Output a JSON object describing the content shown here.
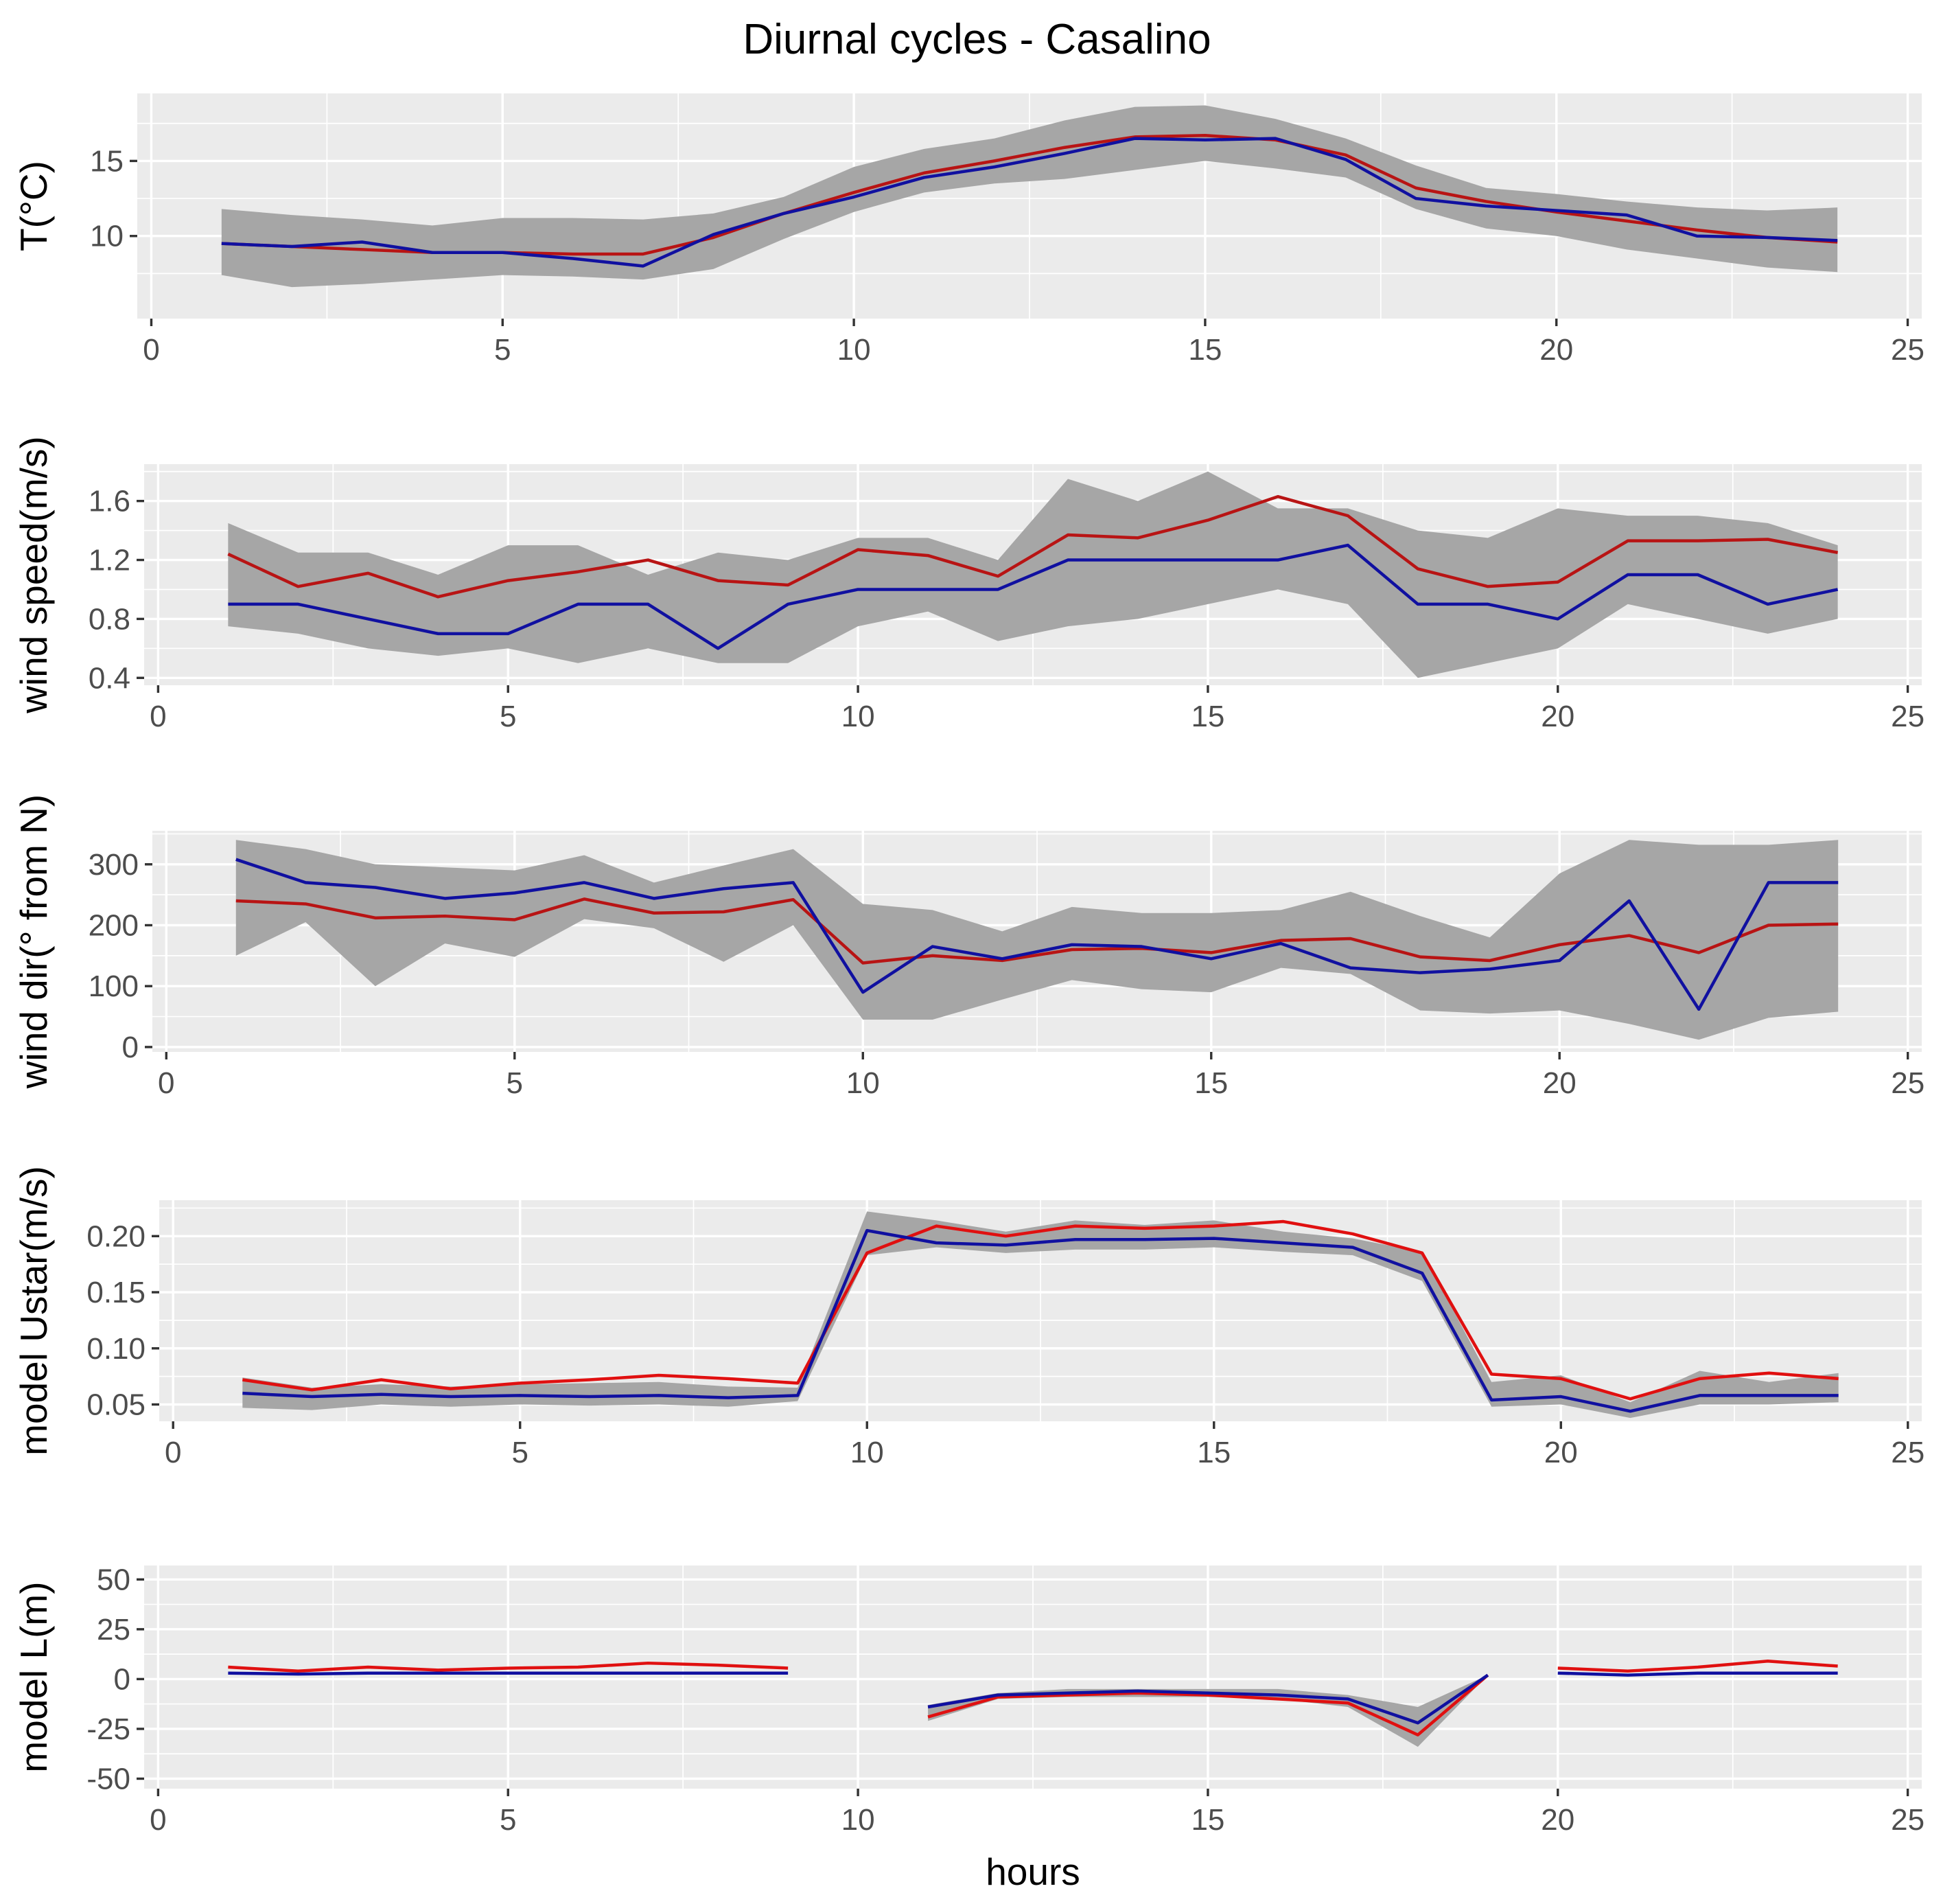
{
  "title": "Diurnal cycles - Casalino",
  "x_axis_label": "hours",
  "colors": {
    "panel_background": "#ebebeb",
    "ribbon": "#a6a6a6",
    "observed": "#1010a0",
    "model": "#e01010",
    "model_dark": "#b81414"
  },
  "chart_data": [
    {
      "type": "line",
      "title": "Diurnal cycles - Casalino",
      "ylabel": "T(°C)",
      "xlabel": "",
      "xlim": [
        -0.2,
        25.2
      ],
      "ylim": [
        4.5,
        19.5
      ],
      "xticks": [
        0,
        5,
        10,
        15,
        20,
        25
      ],
      "yticks": [
        10,
        15
      ],
      "x": [
        1,
        2,
        3,
        4,
        5,
        6,
        7,
        8,
        9,
        10,
        11,
        12,
        13,
        14,
        15,
        16,
        17,
        18,
        19,
        20,
        21,
        22,
        23,
        24
      ],
      "ribbon": {
        "upper": [
          11.8,
          11.4,
          11.1,
          10.7,
          11.2,
          11.2,
          11.1,
          11.5,
          12.6,
          14.6,
          15.8,
          16.5,
          17.7,
          18.6,
          18.7,
          17.8,
          16.5,
          14.7,
          13.2,
          12.8,
          12.3,
          11.9,
          11.7,
          11.9
        ],
        "lower": [
          7.4,
          6.6,
          6.8,
          7.1,
          7.4,
          7.3,
          7.1,
          7.8,
          9.8,
          11.6,
          12.9,
          13.5,
          13.8,
          14.4,
          15.0,
          14.5,
          13.9,
          11.8,
          10.5,
          10.0,
          9.1,
          8.5,
          7.9,
          7.6
        ]
      },
      "series": [
        {
          "name": "model",
          "color": "#b81414",
          "values": [
            9.5,
            9.3,
            9.1,
            8.9,
            8.9,
            8.8,
            8.8,
            9.9,
            11.5,
            12.9,
            14.2,
            15.0,
            15.9,
            16.6,
            16.7,
            16.4,
            15.4,
            13.2,
            12.3,
            11.6,
            11.0,
            10.4,
            9.9,
            9.6
          ]
        },
        {
          "name": "observed",
          "color": "#1010a0",
          "values": [
            9.5,
            9.3,
            9.6,
            8.9,
            8.9,
            8.5,
            8.0,
            10.1,
            11.5,
            12.6,
            13.9,
            14.6,
            15.5,
            16.5,
            16.4,
            16.5,
            15.1,
            12.5,
            12.0,
            11.7,
            11.4,
            10.0,
            9.9,
            9.7
          ]
        }
      ]
    },
    {
      "type": "line",
      "ylabel": "wind speed(m/s)",
      "xlabel": "",
      "xlim": [
        -0.2,
        25.2
      ],
      "ylim": [
        0.35,
        1.85
      ],
      "xticks": [
        0,
        5,
        10,
        15,
        20,
        25
      ],
      "yticks": [
        0.4,
        0.8,
        1.2,
        1.6
      ],
      "x": [
        1,
        2,
        3,
        4,
        5,
        6,
        7,
        8,
        9,
        10,
        11,
        12,
        13,
        14,
        15,
        16,
        17,
        18,
        19,
        20,
        21,
        22,
        23,
        24
      ],
      "ribbon": {
        "upper": [
          1.45,
          1.25,
          1.25,
          1.1,
          1.3,
          1.3,
          1.1,
          1.25,
          1.2,
          1.35,
          1.35,
          1.2,
          1.75,
          1.6,
          1.8,
          1.55,
          1.55,
          1.4,
          1.35,
          1.55,
          1.5,
          1.5,
          1.45,
          1.3
        ],
        "lower": [
          0.75,
          0.7,
          0.6,
          0.55,
          0.6,
          0.5,
          0.6,
          0.5,
          0.5,
          0.75,
          0.85,
          0.65,
          0.75,
          0.8,
          0.9,
          1.0,
          0.9,
          0.4,
          0.5,
          0.6,
          0.9,
          0.8,
          0.7,
          0.8
        ]
      },
      "series": [
        {
          "name": "model",
          "color": "#b81414",
          "values": [
            1.24,
            1.02,
            1.11,
            0.95,
            1.06,
            1.12,
            1.2,
            1.06,
            1.03,
            1.27,
            1.23,
            1.09,
            1.37,
            1.35,
            1.47,
            1.63,
            1.5,
            1.14,
            1.02,
            1.05,
            1.33,
            1.33,
            1.34,
            1.25
          ]
        },
        {
          "name": "observed",
          "color": "#1010a0",
          "values": [
            0.9,
            0.9,
            0.8,
            0.7,
            0.7,
            0.9,
            0.9,
            0.6,
            0.9,
            1.0,
            1.0,
            1.0,
            1.2,
            1.2,
            1.2,
            1.2,
            1.3,
            0.9,
            0.9,
            0.8,
            1.1,
            1.1,
            0.9,
            1.0
          ]
        }
      ]
    },
    {
      "type": "line",
      "ylabel": "wind dir(° from N)",
      "xlabel": "",
      "xlim": [
        -0.2,
        25.2
      ],
      "ylim": [
        -8,
        355
      ],
      "xticks": [
        0,
        5,
        10,
        15,
        20,
        25
      ],
      "yticks": [
        0,
        100,
        200,
        300
      ],
      "x": [
        1,
        2,
        3,
        4,
        5,
        6,
        7,
        8,
        9,
        10,
        11,
        12,
        13,
        14,
        15,
        16,
        17,
        18,
        19,
        20,
        21,
        22,
        23,
        24
      ],
      "ribbon": {
        "upper": [
          340,
          325,
          300,
          295,
          290,
          315,
          270,
          298,
          325,
          235,
          225,
          190,
          230,
          220,
          220,
          225,
          255,
          215,
          180,
          285,
          340,
          332,
          332,
          340
        ],
        "lower": [
          150,
          205,
          100,
          170,
          148,
          210,
          195,
          140,
          200,
          45,
          45,
          78,
          110,
          95,
          90,
          130,
          120,
          60,
          55,
          60,
          38,
          12,
          48,
          58
        ]
      },
      "series": [
        {
          "name": "model",
          "color": "#b81414",
          "values": [
            240,
            235,
            212,
            215,
            209,
            243,
            220,
            222,
            242,
            138,
            150,
            142,
            160,
            162,
            155,
            175,
            178,
            148,
            142,
            168,
            183,
            155,
            200,
            202
          ]
        },
        {
          "name": "observed",
          "color": "#1010a0",
          "values": [
            308,
            270,
            262,
            244,
            253,
            270,
            244,
            260,
            270,
            90,
            165,
            145,
            168,
            165,
            145,
            170,
            130,
            122,
            128,
            142,
            240,
            62,
            270,
            270
          ]
        }
      ]
    },
    {
      "type": "line",
      "ylabel": "model Ustar(m/s)",
      "xlabel": "",
      "xlim": [
        -0.2,
        25.2
      ],
      "ylim": [
        0.035,
        0.232
      ],
      "xticks": [
        0,
        5,
        10,
        15,
        20,
        25
      ],
      "yticks": [
        0.05,
        0.1,
        0.15,
        0.2
      ],
      "x": [
        1,
        2,
        3,
        4,
        5,
        6,
        7,
        8,
        9,
        10,
        11,
        12,
        13,
        14,
        15,
        16,
        17,
        18,
        19,
        20,
        21,
        22,
        23,
        24
      ],
      "ribbon": {
        "upper": [
          0.074,
          0.065,
          0.068,
          0.066,
          0.068,
          0.069,
          0.07,
          0.066,
          0.065,
          0.222,
          0.214,
          0.204,
          0.214,
          0.21,
          0.214,
          0.204,
          0.198,
          0.186,
          0.07,
          0.076,
          0.052,
          0.08,
          0.07,
          0.078
        ],
        "lower": [
          0.047,
          0.045,
          0.05,
          0.048,
          0.05,
          0.049,
          0.05,
          0.048,
          0.053,
          0.183,
          0.19,
          0.185,
          0.188,
          0.188,
          0.19,
          0.186,
          0.183,
          0.16,
          0.048,
          0.05,
          0.038,
          0.05,
          0.05,
          0.052
        ]
      },
      "series": [
        {
          "name": "model",
          "color": "#e01010",
          "values": [
            0.072,
            0.063,
            0.072,
            0.064,
            0.069,
            0.072,
            0.076,
            0.073,
            0.069,
            0.185,
            0.209,
            0.2,
            0.209,
            0.207,
            0.209,
            0.213,
            0.202,
            0.185,
            0.077,
            0.073,
            0.055,
            0.073,
            0.078,
            0.073
          ]
        },
        {
          "name": "observed",
          "color": "#1010a0",
          "values": [
            0.06,
            0.057,
            0.059,
            0.057,
            0.058,
            0.057,
            0.058,
            0.056,
            0.058,
            0.205,
            0.194,
            0.192,
            0.197,
            0.197,
            0.198,
            0.194,
            0.19,
            0.167,
            0.054,
            0.057,
            0.044,
            0.058,
            0.058,
            0.058
          ]
        }
      ]
    },
    {
      "type": "line",
      "ylabel": "model L(m)",
      "xlabel": "hours",
      "xlim": [
        -0.2,
        25.2
      ],
      "ylim": [
        -55,
        57
      ],
      "xticks": [
        0,
        5,
        10,
        15,
        20,
        25
      ],
      "yticks": [
        -50,
        -25,
        0,
        25,
        50
      ],
      "ribbon_segments": [
        {
          "x": [
            11,
            12,
            13,
            14,
            15,
            16,
            17,
            18,
            19
          ],
          "upper": [
            -13,
            -7,
            -5,
            -5,
            -5,
            -5,
            -8,
            -14,
            2
          ],
          "lower": [
            -21,
            -10,
            -9,
            -9,
            -9,
            -10,
            -14,
            -34,
            2
          ]
        }
      ],
      "series": [
        {
          "name": "model",
          "color": "#e01010",
          "segments": [
            {
              "x": [
                1,
                2,
                3,
                4,
                5,
                6,
                7,
                8,
                9
              ],
              "values": [
                6,
                4,
                6,
                4.5,
                5.5,
                6,
                8,
                7,
                5.5
              ]
            },
            {
              "x": [
                11,
                12,
                13,
                14,
                15,
                16,
                17,
                18,
                19
              ],
              "values": [
                -19,
                -9,
                -8,
                -7,
                -8,
                -10,
                -12,
                -28,
                2
              ]
            },
            {
              "x": [
                20,
                21,
                22,
                23,
                24
              ],
              "values": [
                5.5,
                4,
                6,
                9,
                6.5
              ]
            }
          ]
        },
        {
          "name": "observed",
          "color": "#1010a0",
          "segments": [
            {
              "x": [
                1,
                2,
                3,
                4,
                5,
                6,
                7,
                8,
                9
              ],
              "values": [
                3,
                2.5,
                3,
                3,
                3,
                3,
                3,
                3,
                3
              ]
            },
            {
              "x": [
                11,
                12,
                13,
                14,
                15,
                16,
                17,
                18,
                19
              ],
              "values": [
                -14,
                -8,
                -7,
                -6,
                -7,
                -8,
                -10,
                -22,
                2
              ]
            },
            {
              "x": [
                20,
                21,
                22,
                23,
                24
              ],
              "values": [
                3,
                2,
                3,
                3,
                3
              ]
            }
          ]
        }
      ]
    }
  ]
}
